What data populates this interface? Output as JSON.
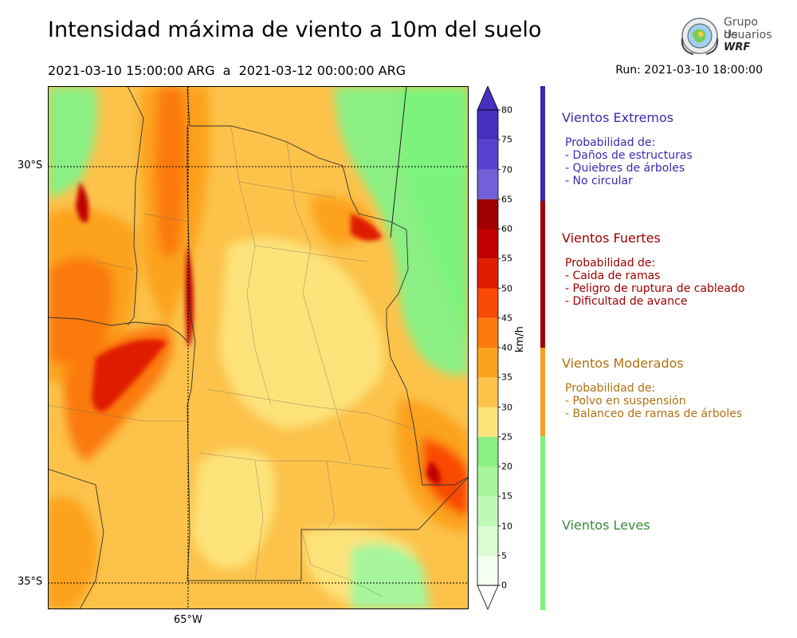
{
  "title": "Intensidad máxima de viento a 10m del suelo",
  "period": "2021-03-10 15:00:00 ARG  a  2021-03-12 00:00:00 ARG",
  "run": "Run: 2021-03-10 18:00:00",
  "logo": {
    "line1": "Grupo de",
    "line2": "Usuarios",
    "line3": "WRF"
  },
  "map": {
    "lat_labels": [
      "30°S",
      "35°S"
    ],
    "lon_labels": [
      "65°W"
    ]
  },
  "colorbar": {
    "unit": "km/h",
    "ticks": [
      "0",
      "5",
      "10",
      "15",
      "20",
      "25",
      "30",
      "35",
      "40",
      "45",
      "50",
      "55",
      "60",
      "65",
      "70",
      "75",
      "80"
    ],
    "colors": [
      "#f4fff0",
      "#d9fcd2",
      "#bff8b4",
      "#a6f59c",
      "#8bef84",
      "#fde37a",
      "#fcc24a",
      "#fca21d",
      "#fb7a0d",
      "#f94a06",
      "#e01c03",
      "#c00000",
      "#a00000",
      "#7160d8",
      "#5742cf",
      "#4530c0"
    ]
  },
  "legend": [
    {
      "name": "Vientos Extremos",
      "color": "#3a2ab0",
      "bar": "#3a2ab0",
      "desc": [
        "Probabilidad de:",
        "- Daños de estructuras",
        "- Quiebres de árboles",
        "- No circular"
      ]
    },
    {
      "name": "Vientos Fuertes",
      "color": "#a00000",
      "bar": "#a00000",
      "desc": [
        "Probabilidad de:",
        "- Caida de ramas",
        "- Peligro de ruptura de cableado",
        "- Dificultad de avance"
      ]
    },
    {
      "name": "Vientos Moderados",
      "color": "#b07010",
      "bar": "#f7a01e",
      "desc": [
        "Probabilidad de:",
        "- Polvo en suspensión",
        "- Balanceo de ramas de árboles"
      ]
    },
    {
      "name": "Vientos Leves",
      "color": "#3a8a3a",
      "bar": "#7cf37c",
      "desc": []
    }
  ]
}
